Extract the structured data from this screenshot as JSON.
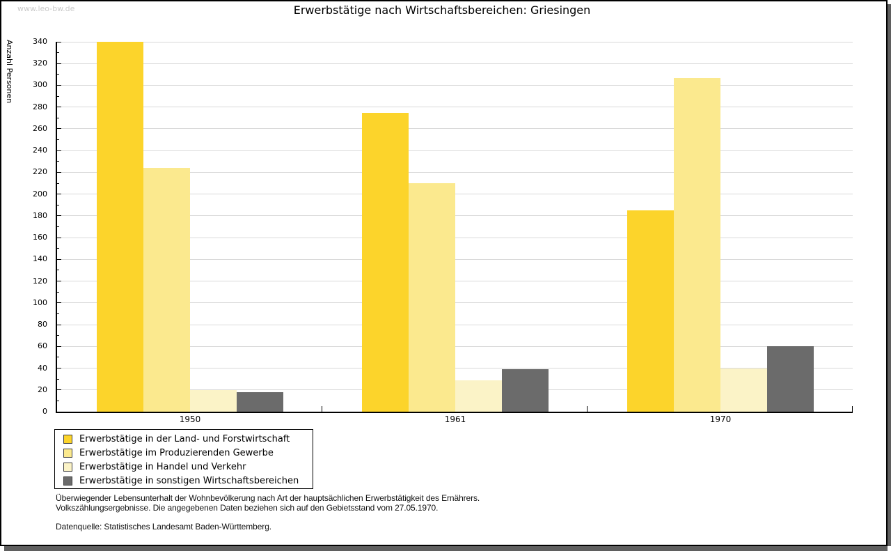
{
  "watermark": "www.leo-bw.de",
  "title": "Erwerbstätige nach Wirtschaftsbereichen: Griesingen",
  "y_axis": {
    "label": "Anzahl Personen",
    "min": 0,
    "max": 340,
    "major_step": 20,
    "minor_step": 10
  },
  "chart_data": {
    "type": "bar",
    "title": "Erwerbstätige nach Wirtschaftsbereichen: Griesingen",
    "xlabel": "",
    "ylabel": "Anzahl Personen",
    "ylim": [
      0,
      340
    ],
    "grid": true,
    "legend_position": "bottom-left",
    "categories": [
      "1950",
      "1961",
      "1970"
    ],
    "series": [
      {
        "name": "Erwerbstätige in der Land- und Forstwirtschaft",
        "color": "#FCD42B",
        "values": [
          340,
          275,
          185
        ]
      },
      {
        "name": "Erwerbstätige im Produzierenden Gewerbe",
        "color": "#FBE98E",
        "values": [
          224,
          210,
          307
        ]
      },
      {
        "name": "Erwerbstätige in Handel und Verkehr",
        "color": "#FBF3C7",
        "values": [
          20,
          29,
          40
        ]
      },
      {
        "name": "Erwerbstätige in sonstigen Wirtschaftsbereichen",
        "color": "#6B6B6B",
        "values": [
          18,
          39,
          60
        ]
      }
    ],
    "colors": {
      "grid": "#d9d9d9",
      "axis": "#000000"
    }
  },
  "footer": {
    "line1": "Überwiegender Lebensunterhalt der Wohnbevölkerung nach Art der hauptsächlichen Erwerbstätigkeit des Ernährers.",
    "line2": "Volkszählungsergebnisse. Die angegebenen Daten beziehen sich auf den Gebietsstand vom 27.05.1970.",
    "source": "Datenquelle: Statistisches Landesamt Baden-Württemberg."
  }
}
